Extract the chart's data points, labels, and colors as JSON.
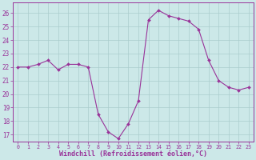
{
  "x": [
    0,
    1,
    2,
    3,
    4,
    5,
    6,
    7,
    8,
    9,
    10,
    11,
    12,
    13,
    14,
    15,
    16,
    17,
    18,
    19,
    20,
    21,
    22,
    23
  ],
  "y": [
    22,
    22,
    22.2,
    22.5,
    21.8,
    22.2,
    22.2,
    22,
    18.5,
    17.2,
    16.7,
    17.8,
    19.5,
    25.5,
    26.2,
    25.8,
    25.6,
    25.4,
    24.8,
    22.5,
    21,
    20.5,
    20.3,
    20.5
  ],
  "line_color": "#993399",
  "marker": "D",
  "marker_size": 2.0,
  "bg_color": "#cce8e8",
  "grid_color": "#aacccc",
  "xlabel": "Windchill (Refroidissement éolien,°C)",
  "xlabel_color": "#993399",
  "ylim": [
    16.5,
    26.8
  ],
  "xlim": [
    -0.5,
    23.5
  ],
  "yticks": [
    17,
    18,
    19,
    20,
    21,
    22,
    23,
    24,
    25,
    26
  ],
  "xticks": [
    0,
    1,
    2,
    3,
    4,
    5,
    6,
    7,
    8,
    9,
    10,
    11,
    12,
    13,
    14,
    15,
    16,
    17,
    18,
    19,
    20,
    21,
    22,
    23
  ],
  "tick_color": "#993399",
  "tick_fontsize": 4.8,
  "xlabel_fontsize": 6.0,
  "ytick_fontsize": 5.5,
  "spine_color": "#993399",
  "linewidth": 0.8
}
